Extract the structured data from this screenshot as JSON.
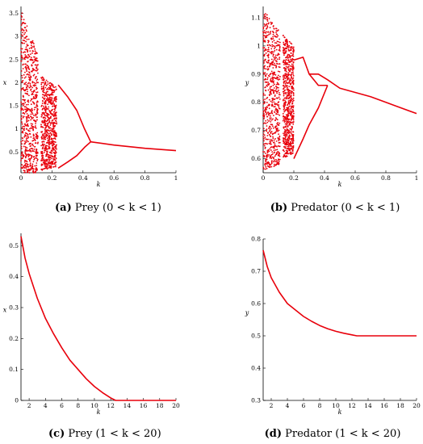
{
  "chart_data": [
    {
      "id": "a",
      "type": "scatter",
      "caption_tag": "(a)",
      "caption_text": "Prey (0 < k < 1)",
      "xlabel": "k",
      "ylabel": "x",
      "xlim": [
        0,
        1
      ],
      "ylim": [
        0.05,
        3.65
      ],
      "xticks": [
        0,
        0.2,
        0.4,
        0.6,
        0.8,
        1
      ],
      "xtick_labels": [
        "0",
        "0.2",
        "0.4",
        "0.6",
        "0.8",
        "1"
      ],
      "yticks": [
        0.5,
        1,
        1.5,
        2,
        2.5,
        3,
        3.5
      ],
      "ytick_labels": [
        "0.5",
        "1",
        "1.5",
        "2",
        "2.5",
        "3",
        "3.5"
      ],
      "color": "#e8000b",
      "series": [
        {
          "kind": "scatter-region",
          "x": [
            0,
            0.11
          ],
          "y_low": [
            0.05,
            0.05
          ],
          "y_high": [
            3.6,
            2.6
          ]
        },
        {
          "kind": "scatter-region",
          "x": [
            0.13,
            0.23
          ],
          "y_low": [
            0.1,
            0.18
          ],
          "y_high": [
            2.15,
            1.9
          ]
        },
        {
          "kind": "line",
          "x": [
            0.45,
            0.6,
            0.8,
            1.0
          ],
          "y": [
            0.72,
            0.65,
            0.58,
            0.53
          ]
        },
        {
          "kind": "line",
          "x": [
            0.24,
            0.3,
            0.36,
            0.41,
            0.45
          ],
          "y": [
            1.95,
            1.7,
            1.4,
            1.0,
            0.72
          ]
        },
        {
          "kind": "line",
          "x": [
            0.24,
            0.3,
            0.36,
            0.41,
            0.45
          ],
          "y": [
            0.15,
            0.28,
            0.42,
            0.6,
            0.72
          ]
        }
      ]
    },
    {
      "id": "b",
      "type": "scatter",
      "caption_tag": "(b)",
      "caption_text": "Predator (0 < k < 1)",
      "xlabel": "k",
      "ylabel": "y",
      "xlim": [
        0,
        1
      ],
      "ylim": [
        0.55,
        1.14
      ],
      "xticks": [
        0,
        0.2,
        0.4,
        0.6,
        0.8,
        1
      ],
      "xtick_labels": [
        "0",
        "0.2",
        "0.4",
        "0.6",
        "0.8",
        "1"
      ],
      "yticks": [
        0.6,
        0.7,
        0.8,
        0.9,
        1,
        1.1
      ],
      "ytick_labels": [
        "0.6",
        "0.7",
        "0.8",
        "0.9",
        "1",
        "1.1"
      ],
      "color": "#e8000b",
      "series": [
        {
          "kind": "scatter-region",
          "x": [
            0,
            0.11
          ],
          "y_low": [
            0.56,
            0.58
          ],
          "y_high": [
            1.13,
            1.05
          ]
        },
        {
          "kind": "scatter-region",
          "x": [
            0.13,
            0.2
          ],
          "y_low": [
            0.6,
            0.62
          ],
          "y_high": [
            1.04,
            1.0
          ]
        },
        {
          "kind": "line",
          "x": [
            0.3,
            0.36,
            0.42,
            0.5,
            0.7,
            0.85,
            1.0
          ],
          "y": [
            0.9,
            0.9,
            0.88,
            0.85,
            0.82,
            0.79,
            0.76
          ]
        },
        {
          "kind": "line",
          "x": [
            0.2,
            0.26,
            0.3,
            0.36,
            0.42
          ],
          "y": [
            0.95,
            0.96,
            0.9,
            0.86,
            0.86
          ]
        },
        {
          "kind": "line",
          "x": [
            0.2,
            0.26,
            0.3,
            0.36,
            0.42
          ],
          "y": [
            0.6,
            0.67,
            0.72,
            0.78,
            0.86
          ]
        }
      ]
    },
    {
      "id": "c",
      "type": "line",
      "caption_tag": "(c)",
      "caption_text": "Prey (1 < k < 20)",
      "xlabel": "k",
      "ylabel": "x",
      "xlim": [
        1,
        20
      ],
      "ylim": [
        0,
        0.54
      ],
      "xticks": [
        2,
        4,
        6,
        8,
        10,
        12,
        14,
        16,
        18,
        20
      ],
      "xtick_labels": [
        "2",
        "4",
        "6",
        "8",
        "10",
        "12",
        "14",
        "16",
        "18",
        "20"
      ],
      "yticks": [
        0,
        0.1,
        0.2,
        0.3,
        0.4,
        0.5
      ],
      "ytick_labels": [
        "0",
        "0.1",
        "0.2",
        "0.3",
        "0.4",
        "0.5"
      ],
      "color": "#e8000b",
      "series": [
        {
          "kind": "line",
          "x": [
            1,
            1.5,
            2,
            3,
            4,
            5,
            6,
            7,
            8,
            9,
            10,
            11,
            12,
            12.6,
            14,
            16,
            18,
            20
          ],
          "y": [
            0.53,
            0.46,
            0.41,
            0.33,
            0.265,
            0.215,
            0.17,
            0.13,
            0.1,
            0.07,
            0.045,
            0.025,
            0.008,
            0.0,
            0.0,
            0.0,
            0.0,
            0.0
          ]
        }
      ]
    },
    {
      "id": "d",
      "type": "line",
      "caption_tag": "(d)",
      "caption_text": "Predator (1 < k < 20)",
      "xlabel": "k",
      "ylabel": "y",
      "xlim": [
        1,
        20
      ],
      "ylim": [
        0.3,
        0.8
      ],
      "xticks": [
        2,
        4,
        6,
        8,
        10,
        12,
        14,
        16,
        18,
        20
      ],
      "xtick_labels": [
        "2",
        "4",
        "6",
        "8",
        "10",
        "12",
        "14",
        "16",
        "18",
        "20"
      ],
      "yticks": [
        0.3,
        0.4,
        0.5,
        0.6,
        0.7,
        0.8
      ],
      "ytick_labels": [
        "0.3",
        "0.4",
        "0.5",
        "0.6",
        "0.7",
        "0.8"
      ],
      "color": "#e8000b",
      "series": [
        {
          "kind": "line",
          "x": [
            1,
            1.5,
            2,
            3,
            4,
            5,
            6,
            7,
            8,
            9,
            10,
            11,
            12,
            12.6,
            14,
            16,
            18,
            20
          ],
          "y": [
            0.765,
            0.715,
            0.68,
            0.635,
            0.6,
            0.58,
            0.56,
            0.545,
            0.532,
            0.522,
            0.514,
            0.508,
            0.503,
            0.5,
            0.5,
            0.5,
            0.5,
            0.5
          ]
        }
      ]
    }
  ]
}
